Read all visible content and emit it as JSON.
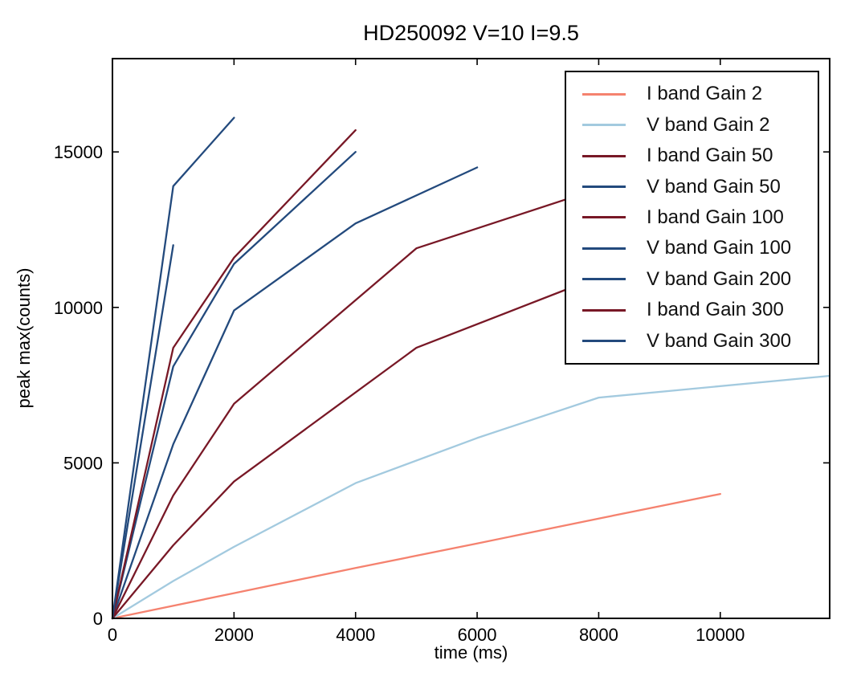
{
  "chart_data": {
    "type": "line",
    "title": "HD250092 V=10 I=9.5",
    "xlabel": "time (ms)",
    "ylabel": "peak max(counts)",
    "xlim": [
      0,
      11800
    ],
    "ylim": [
      0,
      18000
    ],
    "xticks": [
      0,
      2000,
      4000,
      6000,
      8000,
      10000
    ],
    "yticks": [
      0,
      5000,
      10000,
      15000
    ],
    "grid": false,
    "legend_position": "upper right",
    "axis_color": "#000000",
    "background_color": "#ffffff",
    "series": [
      {
        "name": "I band Gain 2",
        "color": "#F5826F",
        "points": [
          [
            0,
            0
          ],
          [
            2000,
            810
          ],
          [
            4000,
            1620
          ],
          [
            6000,
            2410
          ],
          [
            8000,
            3210
          ],
          [
            10000,
            4000
          ]
        ]
      },
      {
        "name": "V band Gain 2",
        "color": "#A3CADF",
        "points": [
          [
            0,
            0
          ],
          [
            1000,
            1200
          ],
          [
            2000,
            2300
          ],
          [
            4000,
            4350
          ],
          [
            6000,
            5800
          ],
          [
            8000,
            7100
          ],
          [
            11800,
            7800
          ]
        ]
      },
      {
        "name": "I band Gain 50",
        "color": "#781826",
        "points": [
          [
            0,
            0
          ],
          [
            1000,
            2350
          ],
          [
            2000,
            4400
          ],
          [
            5000,
            8700
          ],
          [
            7500,
            10600
          ]
        ]
      },
      {
        "name": "V band Gain 50",
        "color": "#234A7D",
        "points": [
          [
            0,
            0
          ],
          [
            1000,
            5600
          ],
          [
            2000,
            9900
          ],
          [
            4000,
            12700
          ],
          [
            6000,
            14500
          ]
        ]
      },
      {
        "name": "I band Gain 100",
        "color": "#781826",
        "points": [
          [
            0,
            0
          ],
          [
            1000,
            3950
          ],
          [
            2000,
            6900
          ],
          [
            5000,
            11900
          ],
          [
            7500,
            13500
          ]
        ]
      },
      {
        "name": "V band Gain 100",
        "color": "#234A7D",
        "points": [
          [
            0,
            0
          ],
          [
            1000,
            8100
          ],
          [
            2000,
            11400
          ],
          [
            4000,
            15000
          ]
        ]
      },
      {
        "name": "V band Gain 200",
        "color": "#234A7D",
        "points": [
          [
            0,
            0
          ],
          [
            1000,
            12000
          ]
        ]
      },
      {
        "name": "I band Gain 300",
        "color": "#781826",
        "points": [
          [
            0,
            0
          ],
          [
            1000,
            8700
          ],
          [
            2000,
            11600
          ],
          [
            4000,
            15700
          ]
        ]
      },
      {
        "name": "V band Gain 300",
        "color": "#234A7D",
        "points": [
          [
            0,
            0
          ],
          [
            1000,
            13900
          ],
          [
            2000,
            16100
          ]
        ]
      }
    ]
  }
}
